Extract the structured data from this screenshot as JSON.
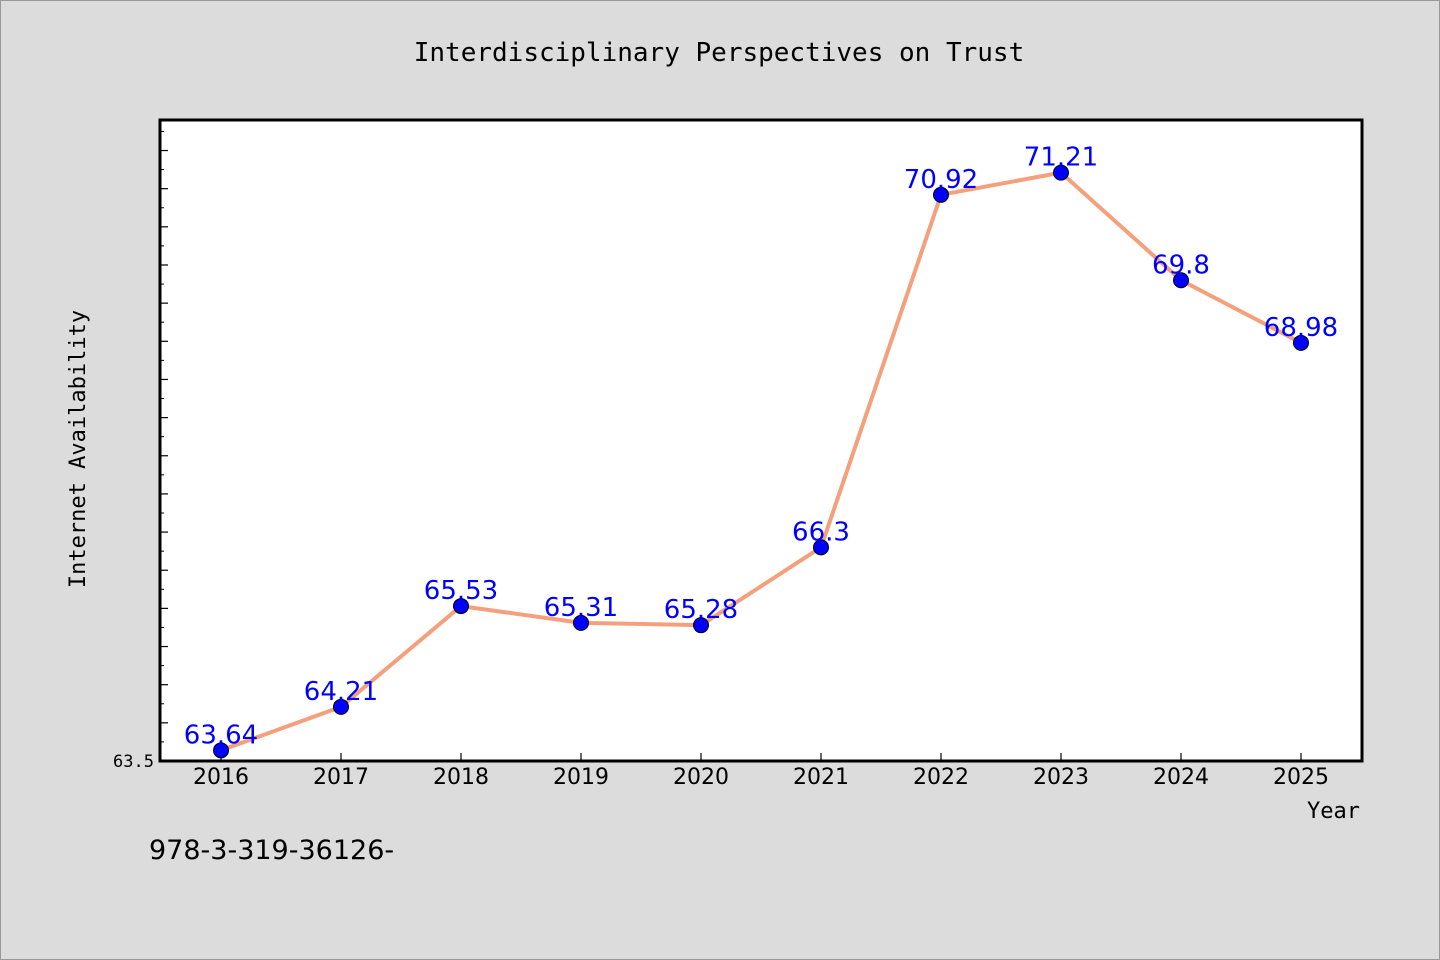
{
  "chart_data": {
    "type": "line",
    "title": "Interdisciplinary Perspectives on Trust",
    "xlabel": "Year",
    "ylabel": "Internet Availability",
    "x": [
      "2016",
      "2017",
      "2018",
      "2019",
      "2020",
      "2021",
      "2022",
      "2023",
      "2024",
      "2025"
    ],
    "series": [
      {
        "values": [
          63.64,
          64.21,
          65.53,
          65.31,
          65.28,
          66.3,
          70.92,
          71.21,
          69.8,
          68.98
        ],
        "labels": [
          "63.64",
          "64.21",
          "65.53",
          "65.31",
          "65.28",
          "66.3",
          "70.92",
          "71.21",
          "69.8",
          "68.98"
        ],
        "line_color": "#f4a07c",
        "marker_color": "#0000ff",
        "label_color": "#0000ff"
      }
    ],
    "ylim": [
      63.5,
      71.9
    ],
    "ytick_labels": [
      "63.5"
    ],
    "grid": false,
    "legend": "none"
  },
  "footer": {
    "text": "978-3-319-36126-"
  },
  "colors": {
    "background": "#dcdcdc",
    "plot_background": "#ffffff",
    "axis": "#000000"
  }
}
